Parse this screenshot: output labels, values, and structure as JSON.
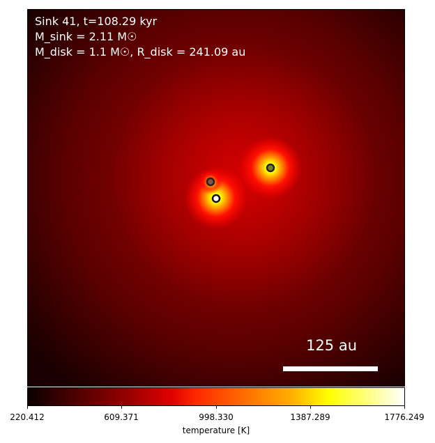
{
  "annotation": {
    "line1": "Sink 41, t=108.29 kyr",
    "line2": "M_sink = 2.11 M☉",
    "line3": "M_disk = 1.1 M☉, R_disk = 241.09 au"
  },
  "scale_bar": {
    "label": "125 au"
  },
  "colorbar": {
    "label": "temperature [K]",
    "ticks": [
      "220.412",
      "609.371",
      "998.330",
      "1387.289",
      "1776.249"
    ]
  },
  "colors": {
    "background": "#5a0000",
    "hot": "#ffff00",
    "cold": "#0b0000"
  }
}
